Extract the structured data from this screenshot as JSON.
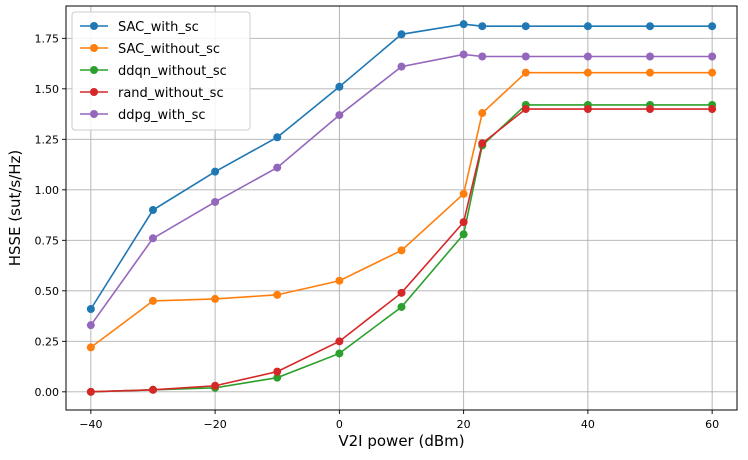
{
  "chart_data": {
    "type": "line",
    "title": "",
    "xlabel": "V2I power (dBm)",
    "ylabel": "HSSE (sut/s/Hz)",
    "xlim": [
      -44,
      64
    ],
    "ylim": [
      -0.09,
      1.91
    ],
    "x_ticks": [
      -40,
      -20,
      0,
      20,
      40,
      60
    ],
    "x_tick_labels": [
      "−40",
      "−20",
      "0",
      "20",
      "40",
      "60"
    ],
    "y_ticks": [
      0.0,
      0.25,
      0.5,
      0.75,
      1.0,
      1.25,
      1.5,
      1.75
    ],
    "y_tick_labels": [
      "0.00",
      "0.25",
      "0.50",
      "0.75",
      "1.00",
      "1.25",
      "1.50",
      "1.75"
    ],
    "grid": true,
    "legend_position": "top-left",
    "x": [
      -40,
      -30,
      -20,
      -10,
      0,
      10,
      20,
      23,
      30,
      40,
      50,
      60
    ],
    "series": [
      {
        "name": "SAC_with_sc",
        "color": "#1f77b4",
        "values": [
          0.41,
          0.9,
          1.09,
          1.26,
          1.51,
          1.77,
          1.82,
          1.81,
          1.81,
          1.81,
          1.81,
          1.81
        ]
      },
      {
        "name": "SAC_without_sc",
        "color": "#ff7f0e",
        "values": [
          0.22,
          0.45,
          0.46,
          0.48,
          0.55,
          0.7,
          0.98,
          1.38,
          1.58,
          1.58,
          1.58,
          1.58
        ]
      },
      {
        "name": "ddqn_without_sc",
        "color": "#2ca02c",
        "values": [
          0.0,
          0.01,
          0.02,
          0.07,
          0.19,
          0.42,
          0.78,
          1.22,
          1.42,
          1.42,
          1.42,
          1.42
        ]
      },
      {
        "name": "rand_without_sc",
        "color": "#d62728",
        "values": [
          0.0,
          0.01,
          0.03,
          0.1,
          0.25,
          0.49,
          0.84,
          1.23,
          1.4,
          1.4,
          1.4,
          1.4
        ]
      },
      {
        "name": "ddpg_with_sc",
        "color": "#9467bd",
        "values": [
          0.33,
          0.76,
          0.94,
          1.11,
          1.37,
          1.61,
          1.67,
          1.66,
          1.66,
          1.66,
          1.66,
          1.66
        ]
      }
    ]
  }
}
